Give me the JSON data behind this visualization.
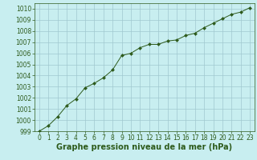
{
  "x": [
    0,
    1,
    2,
    3,
    4,
    5,
    6,
    7,
    8,
    9,
    10,
    11,
    12,
    13,
    14,
    15,
    16,
    17,
    18,
    19,
    20,
    21,
    22,
    23
  ],
  "y": [
    999.0,
    999.5,
    1000.3,
    1001.3,
    1001.9,
    1002.9,
    1003.3,
    1003.8,
    1004.5,
    1005.8,
    1006.0,
    1006.5,
    1006.8,
    1006.8,
    1007.1,
    1007.2,
    1007.6,
    1007.8,
    1008.3,
    1008.7,
    1009.1,
    1009.5,
    1009.7,
    1010.1
  ],
  "line_color": "#2d5a1b",
  "marker": "D",
  "marker_size": 2,
  "bg_color": "#c8eef0",
  "grid_color": "#a0c8d0",
  "xlabel": "Graphe pression niveau de la mer (hPa)",
  "xlabel_color": "#2d5a1b",
  "tick_color": "#2d5a1b",
  "ylim": [
    999,
    1010.5
  ],
  "xlim": [
    -0.5,
    23.5
  ],
  "yticks": [
    999,
    1000,
    1001,
    1002,
    1003,
    1004,
    1005,
    1006,
    1007,
    1008,
    1009,
    1010
  ],
  "xticks": [
    0,
    1,
    2,
    3,
    4,
    5,
    6,
    7,
    8,
    9,
    10,
    11,
    12,
    13,
    14,
    15,
    16,
    17,
    18,
    19,
    20,
    21,
    22,
    23
  ],
  "font_size_ticks": 5.5,
  "font_size_label": 7
}
